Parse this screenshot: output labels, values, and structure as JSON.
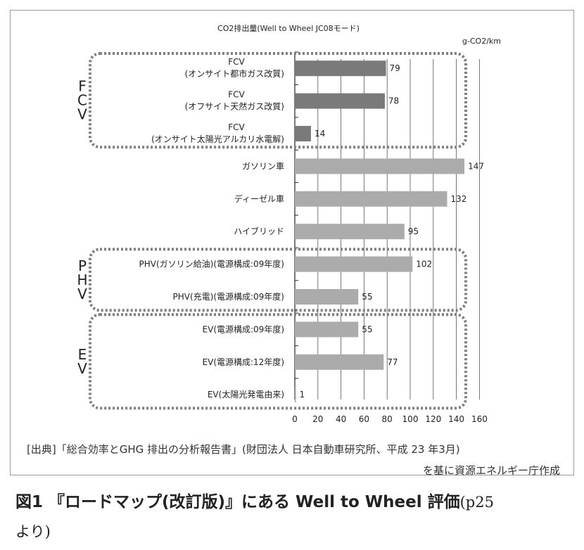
{
  "chart_data": {
    "type": "bar",
    "orientation": "horizontal",
    "title": "CO2排出量(Well to Wheel JC08モード)",
    "unit": "g-CO2/km",
    "xlim": [
      0,
      160
    ],
    "xticks": [
      0,
      20,
      40,
      60,
      80,
      100,
      120,
      140,
      160
    ],
    "grid": true,
    "categories": [
      [
        "FCV",
        "(オンサイト都市ガス改質)"
      ],
      [
        "FCV",
        "(オフサイト天然ガス改質)"
      ],
      [
        "FCV",
        "(オンサイト太陽光アルカリ水電解)"
      ],
      [
        "ガソリン車"
      ],
      [
        "ディーゼル車"
      ],
      [
        "ハイブリッド"
      ],
      [
        "PHV(ガソリン給油)(電源構成:09年度)"
      ],
      [
        "PHV(充電)(電源構成:09年度)"
      ],
      [
        "EV(電源構成:09年度)"
      ],
      [
        "EV(電源構成:12年度)"
      ],
      [
        "EV(太陽光発電由来)"
      ]
    ],
    "values": [
      79,
      78,
      14,
      147,
      132,
      95,
      102,
      55,
      55,
      77,
      1
    ],
    "colors": {
      "fcv_bar": "#7a7a7a",
      "other_bar": "#ababab",
      "group_border": "#7f7f7f",
      "grid": "#555555"
    },
    "groups": [
      {
        "label": "FCV",
        "from": 0,
        "to": 2
      },
      {
        "label": "PHV",
        "from": 6,
        "to": 7
      },
      {
        "label": "EV",
        "from": 8,
        "to": 10
      }
    ]
  },
  "source_line1": "[出典]「総合効率とGHG 排出の分析報告書」(財団法人 日本自動車研究所、平成 23 年3月)",
  "source_line2": "を基に資源エネルギー庁作成",
  "caption_main": "図1 『ロードマップ(改訂版)』にある Well to Wheel 評価",
  "caption_tail": "(p25",
  "caption_wrap": "より)"
}
